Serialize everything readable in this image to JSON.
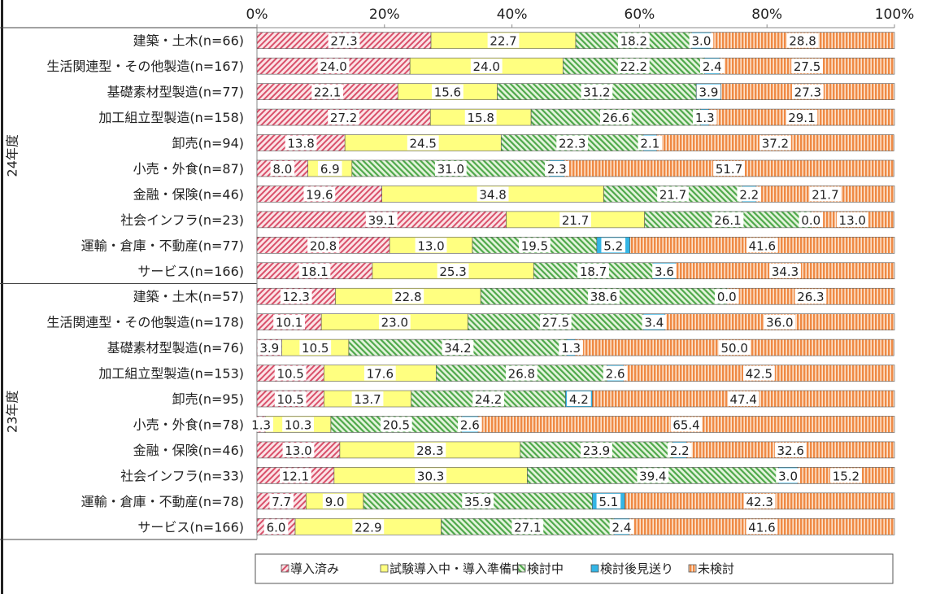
{
  "chart_data": {
    "type": "bar",
    "orientation": "horizontal",
    "stacked": true,
    "xlim": [
      0,
      100
    ],
    "x_ticks": [
      "0%",
      "20%",
      "40%",
      "60%",
      "80%",
      "100%"
    ],
    "legend_position": "bottom",
    "series": [
      {
        "name": "導入済み",
        "color": "#e06070",
        "pattern": "diagonal-hatch"
      },
      {
        "name": "試験導入中・導入準備中",
        "color": "#ffff80",
        "pattern": "solid"
      },
      {
        "name": "検討中",
        "color": "#5cb85c",
        "pattern": "diagonal-hatch"
      },
      {
        "name": "検討後見送り",
        "color": "#33b5e5",
        "pattern": "solid"
      },
      {
        "name": "未検討",
        "color": "#f0904a",
        "pattern": "vertical-stripes"
      }
    ],
    "groups": [
      {
        "label": "24年度",
        "rows": [
          {
            "category": "建築・土木(n=66)",
            "values": [
              27.3,
              22.7,
              18.2,
              3.0,
              28.8
            ]
          },
          {
            "category": "生活関連型・その他製造(n=167)",
            "values": [
              24.0,
              24.0,
              22.2,
              2.4,
              27.5
            ]
          },
          {
            "category": "基礎素材型製造(n=77)",
            "values": [
              22.1,
              15.6,
              31.2,
              3.9,
              27.3
            ]
          },
          {
            "category": "加工組立型製造(n=158)",
            "values": [
              27.2,
              15.8,
              26.6,
              1.3,
              29.1
            ]
          },
          {
            "category": "卸売(n=94)",
            "values": [
              13.8,
              24.5,
              22.3,
              2.1,
              37.2
            ]
          },
          {
            "category": "小売・外食(n=87)",
            "values": [
              8.0,
              6.9,
              31.0,
              2.3,
              51.7
            ]
          },
          {
            "category": "金融・保険(n=46)",
            "values": [
              19.6,
              34.8,
              21.7,
              2.2,
              21.7
            ]
          },
          {
            "category": "社会インフラ(n=23)",
            "values": [
              39.1,
              21.7,
              26.1,
              0.0,
              13.0
            ]
          },
          {
            "category": "運輸・倉庫・不動産(n=77)",
            "values": [
              20.8,
              13.0,
              19.5,
              5.2,
              41.6
            ]
          },
          {
            "category": "サービス(n=166)",
            "values": [
              18.1,
              25.3,
              18.7,
              3.6,
              34.3
            ]
          }
        ]
      },
      {
        "label": "23年度",
        "rows": [
          {
            "category": "建築・土木(n=57)",
            "values": [
              12.3,
              22.8,
              38.6,
              0.0,
              26.3
            ]
          },
          {
            "category": "生活関連型・その他製造(n=178)",
            "values": [
              10.1,
              23.0,
              27.5,
              3.4,
              36.0
            ]
          },
          {
            "category": "基礎素材型製造(n=76)",
            "values": [
              3.9,
              10.5,
              34.2,
              1.3,
              50.0
            ]
          },
          {
            "category": "加工組立型製造(n=153)",
            "values": [
              10.5,
              17.6,
              26.8,
              2.6,
              42.5
            ]
          },
          {
            "category": "卸売(n=95)",
            "values": [
              10.5,
              13.7,
              24.2,
              4.2,
              47.4
            ]
          },
          {
            "category": "小売・外食(n=78)",
            "values": [
              1.3,
              10.3,
              20.5,
              2.6,
              65.4
            ]
          },
          {
            "category": "金融・保険(n=46)",
            "values": [
              13.0,
              28.3,
              23.9,
              2.2,
              32.6
            ]
          },
          {
            "category": "社会インフラ(n=33)",
            "values": [
              12.1,
              30.3,
              39.4,
              3.0,
              15.2
            ]
          },
          {
            "category": "運輸・倉庫・不動産(n=78)",
            "values": [
              7.7,
              9.0,
              35.9,
              5.1,
              42.3
            ]
          },
          {
            "category": "サービス(n=166)",
            "values": [
              6.0,
              22.9,
              27.1,
              2.4,
              41.6
            ]
          }
        ]
      }
    ]
  }
}
